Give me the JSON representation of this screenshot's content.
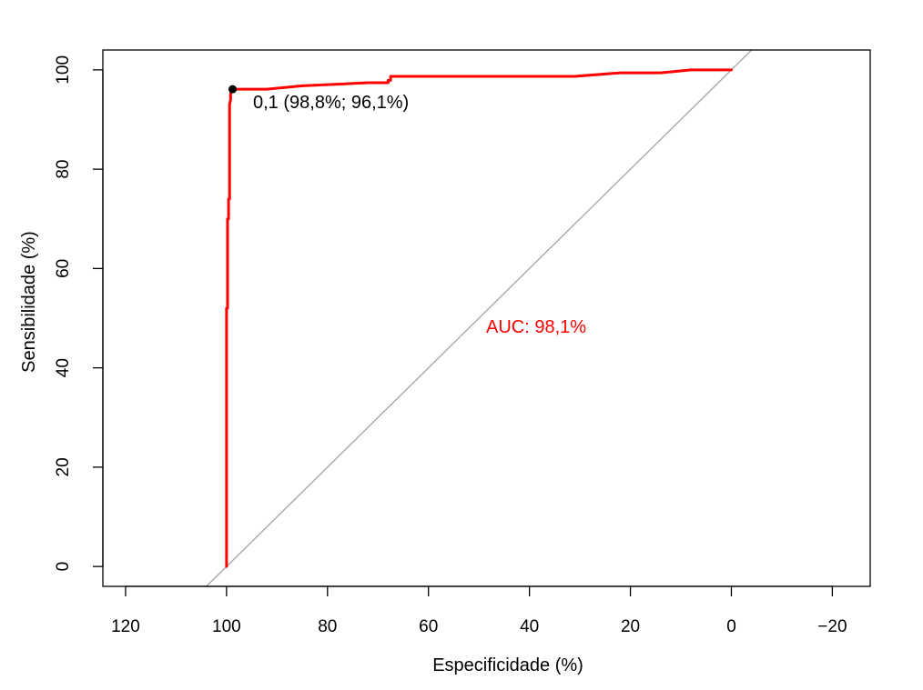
{
  "chart_data": {
    "type": "line",
    "title": "",
    "xlabel": "Especificidade (%)",
    "ylabel": "Sensibilidade (%)",
    "x_reversed": true,
    "xlim": [
      124.5,
      -27.5
    ],
    "ylim": [
      -4,
      104
    ],
    "x_ticks": [
      120,
      100,
      80,
      60,
      40,
      20,
      0,
      -20
    ],
    "x_tick_labels": [
      "120",
      "100",
      "80",
      "60",
      "40",
      "20",
      "0",
      "−20"
    ],
    "y_ticks": [
      0,
      20,
      40,
      60,
      80,
      100
    ],
    "y_tick_labels": [
      "0",
      "20",
      "40",
      "60",
      "80",
      "100"
    ],
    "grid": false,
    "series": [
      {
        "color": "#ff0000",
        "x": [
          100,
          100,
          99.8,
          99.8,
          99.6,
          99.6,
          99.4,
          99.4,
          99.2,
          99.2,
          99.0,
          98.8,
          98.8,
          92,
          85,
          72,
          68,
          68,
          67.5,
          67.5,
          31,
          22,
          14,
          8,
          8,
          0
        ],
        "y": [
          0,
          52,
          52,
          70,
          70,
          74,
          74,
          93,
          94,
          95,
          96.1,
          96.1,
          96.1,
          96.1,
          96.8,
          97.4,
          97.4,
          97.9,
          97.9,
          98.7,
          98.7,
          99.4,
          99.4,
          100,
          100,
          100
        ]
      },
      {
        "color": "#a9a9a9",
        "x": [
          104,
          -4
        ],
        "y": [
          -4,
          104
        ]
      }
    ],
    "point": {
      "x": 98.8,
      "y": 96.1,
      "color": "#000000"
    },
    "annotations": [
      {
        "text": "0,1 (98,8%; 96,1%)",
        "color": "#000000"
      },
      {
        "text": "AUC: 98,1%",
        "color": "#ff0000"
      }
    ]
  }
}
